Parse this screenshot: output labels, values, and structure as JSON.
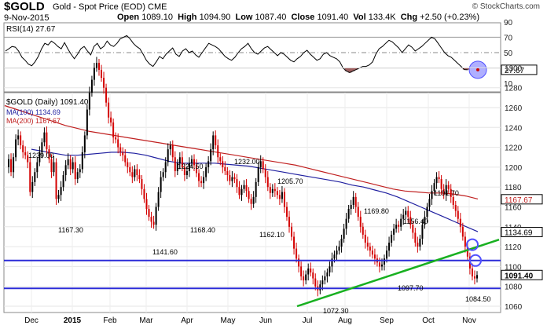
{
  "header": {
    "symbol": "$GOLD",
    "name": "Gold - Spot Price (EOD)",
    "exchange": "CME",
    "date": "9-Nov-2015",
    "credit": "© StockCharts.com",
    "open_label": "Open",
    "open": "1089.10",
    "high_label": "High",
    "high": "1094.90",
    "low_label": "Low",
    "low": "1087.40",
    "close_label": "Close",
    "close": "1091.40",
    "vol_label": "Vol",
    "vol": "133.4K",
    "chg_label": "Chg",
    "chg": "+2.50 (+0.23%)"
  },
  "colors": {
    "up": "#000000",
    "down": "#d40000",
    "ma100": "#2020a0",
    "ma200": "#c02020",
    "trendline": "#18b020",
    "hline": "#2b2bd8",
    "circle": "#5050ff",
    "rsi_fill": "#a06060"
  },
  "chart_data": [
    {
      "type": "line",
      "title": "RSI(14) 27.67",
      "ylim": [
        0,
        100
      ],
      "y_ticks": [
        10,
        30,
        50,
        70,
        90
      ],
      "reference_lines": [
        30,
        50,
        70
      ],
      "last_value": "27.67",
      "series": [
        {
          "name": "RSI(14)",
          "values": [
            52,
            55,
            58,
            57,
            52,
            44,
            40,
            35,
            33,
            38,
            45,
            55,
            62,
            60,
            65,
            62,
            58,
            55,
            63,
            55,
            48,
            42,
            48,
            55,
            58,
            52,
            47,
            58,
            62,
            55,
            58,
            65,
            60,
            58,
            62,
            68,
            70,
            72,
            68,
            62,
            58,
            55,
            48,
            40,
            35,
            32,
            38,
            45,
            42,
            48,
            52,
            56,
            48,
            45,
            52,
            55,
            50,
            52,
            47,
            44,
            50,
            56,
            62,
            60,
            58,
            55,
            50,
            45,
            42,
            40,
            44,
            50,
            55,
            58,
            62,
            55,
            50,
            48,
            52,
            56,
            58,
            54,
            50,
            46,
            50,
            48,
            44,
            40,
            38,
            42,
            45,
            50,
            53,
            48,
            44,
            40,
            42,
            48,
            50,
            46,
            44,
            42,
            38,
            30,
            26,
            24,
            26,
            28,
            30,
            32,
            32,
            34,
            38,
            48,
            55,
            58,
            62,
            66,
            64,
            60,
            56,
            50,
            55,
            60,
            57,
            52,
            55,
            58,
            62,
            66,
            70,
            68,
            62,
            56,
            50,
            46,
            44,
            40,
            36,
            32,
            28,
            27.67
          ]
        }
      ]
    },
    {
      "type": "line",
      "title": "$GOLD (Daily) 1091.40",
      "x_tick_labels": [
        "Dec",
        "2015",
        "Feb",
        "Mar",
        "Apr",
        "May",
        "Jun",
        "Jul",
        "Aug",
        "Sep",
        "Oct",
        "Nov"
      ],
      "ylim": [
        1060,
        1315
      ],
      "y_ticks": [
        1060,
        1080,
        1100,
        1120,
        1140,
        1160,
        1180,
        1200,
        1220,
        1240,
        1260,
        1280,
        1300
      ],
      "last_price_tags": [
        "1167.67",
        "1134.69",
        "1091.40"
      ],
      "price_line": [
        1200,
        1208,
        1195,
        1210,
        1228,
        1232,
        1222,
        1215,
        1212,
        1205,
        1175,
        1185,
        1195,
        1205,
        1215,
        1225,
        1235,
        1218,
        1208,
        1195,
        1205,
        1168,
        1172,
        1180,
        1192,
        1202,
        1208,
        1198,
        1205,
        1188,
        1195,
        1198,
        1215,
        1232,
        1258,
        1275,
        1288,
        1300,
        1305,
        1298,
        1290,
        1280,
        1265,
        1250,
        1245,
        1230,
        1228,
        1220,
        1215,
        1212,
        1205,
        1200,
        1195,
        1190,
        1198,
        1192,
        1188,
        1178,
        1168,
        1158,
        1150,
        1145,
        1142,
        1160,
        1175,
        1190,
        1195,
        1205,
        1218,
        1222,
        1210,
        1196,
        1204,
        1210,
        1200,
        1192,
        1196,
        1204,
        1208,
        1202,
        1194,
        1186,
        1184,
        1190,
        1200,
        1206,
        1218,
        1232,
        1222,
        1210,
        1206,
        1200,
        1196,
        1192,
        1186,
        1190,
        1188,
        1180,
        1172,
        1178,
        1182,
        1176,
        1168,
        1163,
        1170,
        1185,
        1200,
        1206,
        1198,
        1190,
        1180,
        1174,
        1178,
        1176,
        1172,
        1168,
        1175,
        1160,
        1150,
        1140,
        1130,
        1118,
        1108,
        1100,
        1090,
        1086,
        1092,
        1098,
        1094,
        1088,
        1080,
        1076,
        1082,
        1086,
        1090,
        1094,
        1100,
        1108,
        1112,
        1116,
        1120,
        1128,
        1138,
        1148,
        1158,
        1162,
        1170,
        1160,
        1150,
        1140,
        1132,
        1124,
        1120,
        1116,
        1112,
        1108,
        1104,
        1100,
        1102,
        1108,
        1116,
        1124,
        1132,
        1138,
        1142,
        1140,
        1148,
        1152,
        1156,
        1150,
        1142,
        1134,
        1124,
        1120,
        1128,
        1142,
        1150,
        1160,
        1168,
        1176,
        1184,
        1190,
        1188,
        1178,
        1172,
        1182,
        1178,
        1170,
        1162,
        1156,
        1148,
        1140,
        1130,
        1120,
        1110,
        1098,
        1090,
        1088,
        1091.4
      ],
      "series": [
        {
          "name": "MA(100) 1134.69",
          "values": [
            1218,
            1216,
            1214,
            1212,
            1212,
            1213,
            1214,
            1215,
            1215,
            1214,
            1212,
            1209,
            1206,
            1204,
            1204,
            1204,
            1204,
            1203,
            1202,
            1201,
            1199,
            1197,
            1195,
            1193,
            1191,
            1189,
            1187,
            1185,
            1182,
            1180,
            1177,
            1174,
            1170,
            1165,
            1160,
            1155,
            1150,
            1145,
            1140,
            1135
          ]
        },
        {
          "name": "MA(200) 1167.67",
          "values": [
            1262,
            1258,
            1254,
            1250,
            1246,
            1242,
            1239,
            1236,
            1234,
            1232,
            1230,
            1228,
            1226,
            1224,
            1222,
            1220,
            1218,
            1216,
            1214,
            1212,
            1210,
            1208,
            1206,
            1204,
            1202,
            1199,
            1196,
            1193,
            1190,
            1187,
            1184,
            1181,
            1178,
            1176,
            1175,
            1174,
            1174,
            1173,
            1171,
            1168
          ]
        },
        {
          "name": "Trendline",
          "values": [
            1060,
            1127
          ]
        },
        {
          "name": "Support",
          "values": [
            1106
          ]
        },
        {
          "name": "Low",
          "values": [
            1078
          ]
        }
      ],
      "annotations": [
        "1239.00",
        "1167.30",
        "1141.60",
        "1224.50",
        "1168.40",
        "1232.00",
        "1162.10",
        "1205.70",
        "1072.30",
        "1169.80",
        "1097.70",
        "1156.40",
        "1191.70",
        "1084.50"
      ]
    }
  ]
}
